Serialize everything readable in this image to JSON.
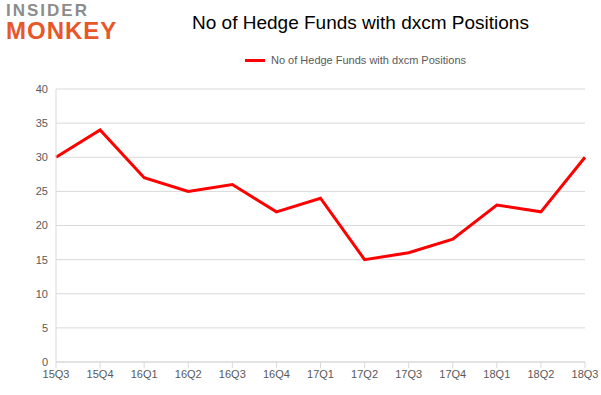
{
  "chart_data": {
    "type": "line",
    "title": "No of Hedge Funds with dxcm Positions",
    "annotations": [
      "INSIDER",
      "MONKEY"
    ],
    "categories": [
      "15Q3",
      "15Q4",
      "16Q1",
      "16Q2",
      "16Q3",
      "16Q4",
      "17Q1",
      "17Q2",
      "17Q3",
      "17Q4",
      "18Q1",
      "18Q2",
      "18Q3"
    ],
    "series": [
      {
        "name": "No of Hedge Funds with dxcm Positions",
        "color": "#ff0000",
        "values": [
          30,
          34,
          27,
          25,
          26,
          22,
          24,
          15,
          16,
          18,
          23,
          22,
          30
        ]
      }
    ],
    "ylim": [
      0,
      40
    ],
    "yticks": [
      0,
      5,
      10,
      15,
      20,
      25,
      30,
      35,
      40
    ],
    "grid": true,
    "legend": "top",
    "marker": "none"
  }
}
